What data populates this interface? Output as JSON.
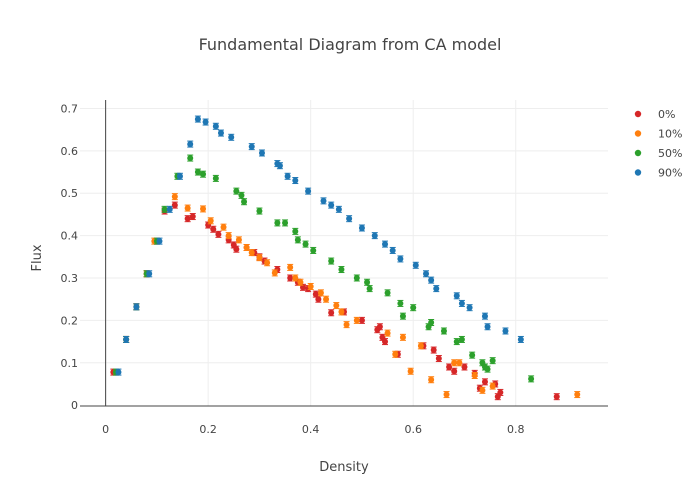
{
  "chart_data": {
    "type": "scatter",
    "title": "Fundamental Diagram from CA model",
    "xlabel": "Density",
    "ylabel": "Flux",
    "xlim": [
      -0.05,
      0.98
    ],
    "ylim": [
      -0.002,
      0.72
    ],
    "xticks": [
      0,
      0.2,
      0.4,
      0.6,
      0.8
    ],
    "xtick_labels": [
      "0",
      "0.2",
      "0.4",
      "0.6",
      "0.8"
    ],
    "yticks": [
      0,
      0.1,
      0.2,
      0.3,
      0.4,
      0.5,
      0.6,
      0.7
    ],
    "ytick_labels": [
      "0",
      "0.1",
      "0.2",
      "0.3",
      "0.4",
      "0.5",
      "0.6",
      "0.7"
    ],
    "grid": true,
    "legend_position": "top-right",
    "error_bars": true,
    "series": [
      {
        "name": "0%",
        "color": "#d62728",
        "points": [
          [
            0.015,
            0.078
          ],
          [
            0.04,
            0.155
          ],
          [
            0.06,
            0.232
          ],
          [
            0.08,
            0.31
          ],
          [
            0.1,
            0.387
          ],
          [
            0.115,
            0.458
          ],
          [
            0.135,
            0.472
          ],
          [
            0.16,
            0.44
          ],
          [
            0.17,
            0.445
          ],
          [
            0.2,
            0.425
          ],
          [
            0.21,
            0.415
          ],
          [
            0.22,
            0.403
          ],
          [
            0.24,
            0.39
          ],
          [
            0.25,
            0.378
          ],
          [
            0.255,
            0.368
          ],
          [
            0.275,
            0.372
          ],
          [
            0.29,
            0.36
          ],
          [
            0.3,
            0.35
          ],
          [
            0.31,
            0.34
          ],
          [
            0.335,
            0.32
          ],
          [
            0.36,
            0.3
          ],
          [
            0.375,
            0.29
          ],
          [
            0.385,
            0.278
          ],
          [
            0.395,
            0.275
          ],
          [
            0.41,
            0.262
          ],
          [
            0.415,
            0.25
          ],
          [
            0.44,
            0.218
          ],
          [
            0.465,
            0.22
          ],
          [
            0.5,
            0.2
          ],
          [
            0.53,
            0.178
          ],
          [
            0.535,
            0.185
          ],
          [
            0.54,
            0.16
          ],
          [
            0.545,
            0.15
          ],
          [
            0.57,
            0.12
          ],
          [
            0.62,
            0.14
          ],
          [
            0.64,
            0.13
          ],
          [
            0.65,
            0.11
          ],
          [
            0.67,
            0.09
          ],
          [
            0.68,
            0.08
          ],
          [
            0.7,
            0.09
          ],
          [
            0.72,
            0.075
          ],
          [
            0.73,
            0.04
          ],
          [
            0.74,
            0.055
          ],
          [
            0.76,
            0.05
          ],
          [
            0.765,
            0.02
          ],
          [
            0.77,
            0.03
          ],
          [
            0.88,
            0.02
          ]
        ]
      },
      {
        "name": "10%",
        "color": "#ff7f0e",
        "points": [
          [
            0.02,
            0.078
          ],
          [
            0.04,
            0.155
          ],
          [
            0.06,
            0.232
          ],
          [
            0.08,
            0.31
          ],
          [
            0.095,
            0.387
          ],
          [
            0.135,
            0.492
          ],
          [
            0.16,
            0.465
          ],
          [
            0.19,
            0.463
          ],
          [
            0.205,
            0.435
          ],
          [
            0.23,
            0.42
          ],
          [
            0.24,
            0.4
          ],
          [
            0.26,
            0.39
          ],
          [
            0.275,
            0.372
          ],
          [
            0.285,
            0.36
          ],
          [
            0.3,
            0.348
          ],
          [
            0.315,
            0.336
          ],
          [
            0.33,
            0.312
          ],
          [
            0.36,
            0.325
          ],
          [
            0.37,
            0.3
          ],
          [
            0.38,
            0.29
          ],
          [
            0.4,
            0.28
          ],
          [
            0.42,
            0.265
          ],
          [
            0.43,
            0.25
          ],
          [
            0.45,
            0.235
          ],
          [
            0.46,
            0.22
          ],
          [
            0.47,
            0.19
          ],
          [
            0.49,
            0.2
          ],
          [
            0.55,
            0.17
          ],
          [
            0.565,
            0.12
          ],
          [
            0.58,
            0.16
          ],
          [
            0.595,
            0.08
          ],
          [
            0.615,
            0.14
          ],
          [
            0.635,
            0.06
          ],
          [
            0.665,
            0.025
          ],
          [
            0.68,
            0.1
          ],
          [
            0.69,
            0.1
          ],
          [
            0.72,
            0.07
          ],
          [
            0.735,
            0.035
          ],
          [
            0.755,
            0.045
          ],
          [
            0.92,
            0.025
          ]
        ]
      },
      {
        "name": "50%",
        "color": "#2ca02c",
        "points": [
          [
            0.02,
            0.078
          ],
          [
            0.04,
            0.155
          ],
          [
            0.06,
            0.232
          ],
          [
            0.08,
            0.31
          ],
          [
            0.1,
            0.387
          ],
          [
            0.115,
            0.462
          ],
          [
            0.14,
            0.54
          ],
          [
            0.165,
            0.583
          ],
          [
            0.18,
            0.55
          ],
          [
            0.19,
            0.545
          ],
          [
            0.215,
            0.535
          ],
          [
            0.255,
            0.505
          ],
          [
            0.265,
            0.495
          ],
          [
            0.27,
            0.48
          ],
          [
            0.3,
            0.458
          ],
          [
            0.335,
            0.43
          ],
          [
            0.35,
            0.43
          ],
          [
            0.37,
            0.41
          ],
          [
            0.375,
            0.39
          ],
          [
            0.39,
            0.38
          ],
          [
            0.405,
            0.365
          ],
          [
            0.44,
            0.34
          ],
          [
            0.46,
            0.32
          ],
          [
            0.49,
            0.3
          ],
          [
            0.51,
            0.29
          ],
          [
            0.515,
            0.275
          ],
          [
            0.55,
            0.265
          ],
          [
            0.575,
            0.24
          ],
          [
            0.58,
            0.21
          ],
          [
            0.6,
            0.23
          ],
          [
            0.63,
            0.185
          ],
          [
            0.635,
            0.195
          ],
          [
            0.66,
            0.175
          ],
          [
            0.685,
            0.15
          ],
          [
            0.695,
            0.155
          ],
          [
            0.715,
            0.118
          ],
          [
            0.735,
            0.1
          ],
          [
            0.74,
            0.09
          ],
          [
            0.745,
            0.085
          ],
          [
            0.755,
            0.105
          ],
          [
            0.83,
            0.062
          ]
        ]
      },
      {
        "name": "90%",
        "color": "#1f77b4",
        "points": [
          [
            0.025,
            0.078
          ],
          [
            0.04,
            0.155
          ],
          [
            0.06,
            0.232
          ],
          [
            0.085,
            0.31
          ],
          [
            0.105,
            0.387
          ],
          [
            0.125,
            0.462
          ],
          [
            0.145,
            0.54
          ],
          [
            0.165,
            0.616
          ],
          [
            0.18,
            0.675
          ],
          [
            0.195,
            0.668
          ],
          [
            0.215,
            0.658
          ],
          [
            0.225,
            0.642
          ],
          [
            0.245,
            0.632
          ],
          [
            0.285,
            0.61
          ],
          [
            0.305,
            0.595
          ],
          [
            0.335,
            0.57
          ],
          [
            0.34,
            0.565
          ],
          [
            0.355,
            0.54
          ],
          [
            0.37,
            0.53
          ],
          [
            0.395,
            0.505
          ],
          [
            0.425,
            0.482
          ],
          [
            0.44,
            0.472
          ],
          [
            0.455,
            0.462
          ],
          [
            0.475,
            0.44
          ],
          [
            0.5,
            0.418
          ],
          [
            0.525,
            0.4
          ],
          [
            0.545,
            0.38
          ],
          [
            0.56,
            0.365
          ],
          [
            0.575,
            0.345
          ],
          [
            0.605,
            0.33
          ],
          [
            0.625,
            0.31
          ],
          [
            0.635,
            0.295
          ],
          [
            0.645,
            0.275
          ],
          [
            0.685,
            0.258
          ],
          [
            0.695,
            0.24
          ],
          [
            0.71,
            0.23
          ],
          [
            0.74,
            0.21
          ],
          [
            0.745,
            0.185
          ],
          [
            0.78,
            0.175
          ],
          [
            0.81,
            0.155
          ]
        ]
      }
    ]
  }
}
